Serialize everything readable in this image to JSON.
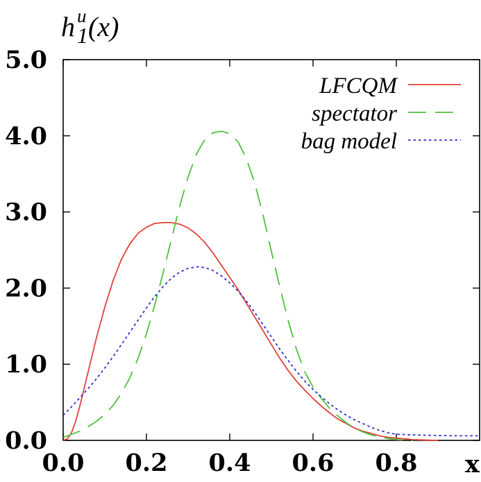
{
  "chart_data": {
    "type": "line",
    "ylabel": {
      "base": "h",
      "sup": "u",
      "sub": "1",
      "arg": "(x)"
    },
    "xlabel": "x",
    "xlim": [
      0.0,
      1.0
    ],
    "ylim": [
      0.0,
      5.0
    ],
    "x_ticks": [
      0.0,
      0.2,
      0.4,
      0.6,
      0.8
    ],
    "x_tick_labels": [
      "0.0",
      "0.2",
      "0.4",
      "0.6",
      "0.8"
    ],
    "y_ticks": [
      0.0,
      1.0,
      2.0,
      3.0,
      4.0,
      5.0
    ],
    "y_tick_labels": [
      "0.0",
      "1.0",
      "2.0",
      "3.0",
      "4.0",
      "5.0"
    ],
    "grid": false,
    "legend_position": "top-right",
    "series": [
      {
        "name": "LFCQM",
        "color": "#e0413a",
        "dash": "solid",
        "x": [
          0.0,
          0.01,
          0.02,
          0.03,
          0.04,
          0.06,
          0.08,
          0.1,
          0.12,
          0.14,
          0.16,
          0.18,
          0.2,
          0.22,
          0.24,
          0.26,
          0.28,
          0.3,
          0.32,
          0.34,
          0.36,
          0.38,
          0.4,
          0.42,
          0.44,
          0.46,
          0.48,
          0.5,
          0.52,
          0.54,
          0.56,
          0.58,
          0.6,
          0.62,
          0.64,
          0.66,
          0.68,
          0.7,
          0.72,
          0.74,
          0.76,
          0.78,
          0.8,
          0.82,
          0.84,
          0.86,
          0.88,
          0.9
        ],
        "y": [
          0.0,
          0.02,
          0.1,
          0.25,
          0.45,
          0.9,
          1.35,
          1.75,
          2.1,
          2.38,
          2.58,
          2.72,
          2.8,
          2.85,
          2.86,
          2.86,
          2.84,
          2.79,
          2.71,
          2.6,
          2.46,
          2.3,
          2.14,
          1.98,
          1.8,
          1.62,
          1.44,
          1.26,
          1.08,
          0.92,
          0.78,
          0.66,
          0.55,
          0.45,
          0.36,
          0.28,
          0.22,
          0.16,
          0.12,
          0.09,
          0.06,
          0.04,
          0.03,
          0.02,
          0.01,
          0.006,
          0.003,
          0.0
        ]
      },
      {
        "name": "spectator",
        "color": "#4fbf3f",
        "dash": "long-dash",
        "x": [
          0.0,
          0.02,
          0.04,
          0.06,
          0.08,
          0.1,
          0.12,
          0.14,
          0.16,
          0.18,
          0.2,
          0.22,
          0.24,
          0.26,
          0.28,
          0.3,
          0.32,
          0.34,
          0.36,
          0.38,
          0.4,
          0.42,
          0.44,
          0.46,
          0.48,
          0.5,
          0.52,
          0.54,
          0.56,
          0.58,
          0.6,
          0.62,
          0.64,
          0.66,
          0.68,
          0.7,
          0.72,
          0.74,
          0.76,
          0.78,
          0.8,
          0.82,
          0.84
        ],
        "y": [
          0.04,
          0.08,
          0.12,
          0.18,
          0.25,
          0.34,
          0.46,
          0.62,
          0.82,
          1.08,
          1.4,
          1.78,
          2.2,
          2.64,
          3.08,
          3.46,
          3.76,
          3.95,
          4.04,
          4.06,
          4.03,
          3.92,
          3.7,
          3.38,
          2.96,
          2.48,
          2.02,
          1.58,
          1.2,
          0.9,
          0.7,
          0.55,
          0.42,
          0.32,
          0.23,
          0.16,
          0.11,
          0.07,
          0.045,
          0.025,
          0.01,
          0.005,
          0.0
        ]
      },
      {
        "name": "bag model",
        "color": "#2d2dcc",
        "dash": "dotted",
        "x": [
          0.0,
          0.02,
          0.04,
          0.06,
          0.08,
          0.1,
          0.12,
          0.14,
          0.16,
          0.18,
          0.2,
          0.22,
          0.24,
          0.26,
          0.28,
          0.3,
          0.32,
          0.34,
          0.36,
          0.38,
          0.4,
          0.42,
          0.44,
          0.46,
          0.48,
          0.5,
          0.52,
          0.54,
          0.56,
          0.58,
          0.6,
          0.62,
          0.64,
          0.66,
          0.68,
          0.7,
          0.72,
          0.74,
          0.76,
          0.78,
          0.8,
          0.85,
          0.9,
          0.95,
          1.0
        ],
        "y": [
          0.33,
          0.44,
          0.56,
          0.68,
          0.81,
          0.95,
          1.1,
          1.26,
          1.42,
          1.58,
          1.74,
          1.89,
          2.02,
          2.13,
          2.21,
          2.26,
          2.28,
          2.27,
          2.23,
          2.16,
          2.07,
          1.96,
          1.83,
          1.68,
          1.52,
          1.36,
          1.2,
          1.05,
          0.91,
          0.78,
          0.67,
          0.57,
          0.48,
          0.4,
          0.33,
          0.27,
          0.22,
          0.17,
          0.13,
          0.1,
          0.08,
          0.07,
          0.065,
          0.06,
          0.06
        ]
      }
    ]
  }
}
